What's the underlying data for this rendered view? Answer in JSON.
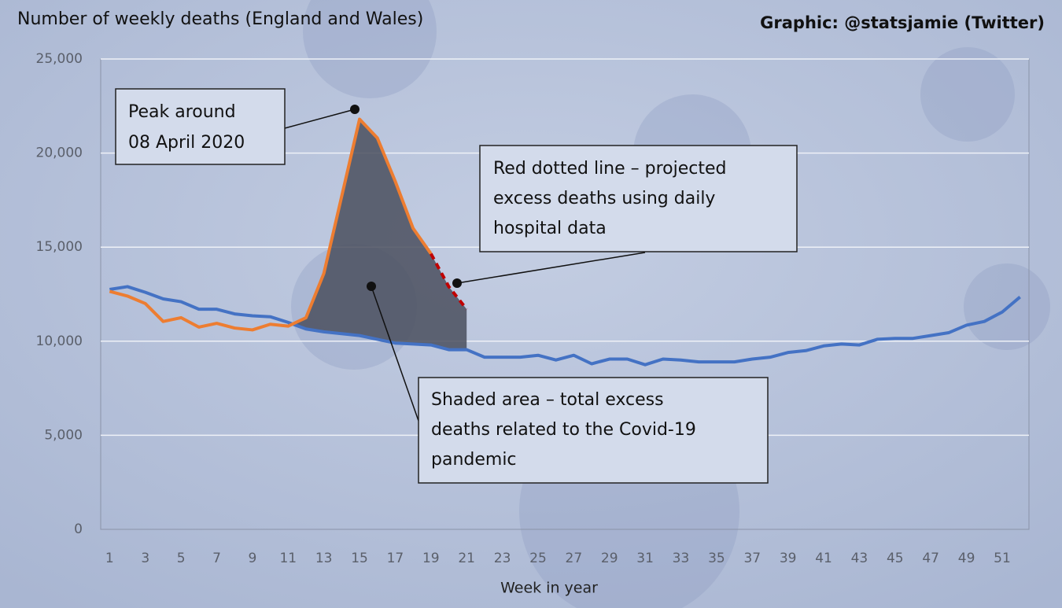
{
  "chart_data": {
    "type": "line",
    "title": "Number of weekly deaths (England and Wales)",
    "credit": "Graphic: @statsjamie (Twitter)",
    "x_label": "Week in year",
    "x": [
      1,
      2,
      3,
      4,
      5,
      6,
      7,
      8,
      9,
      10,
      11,
      12,
      13,
      14,
      15,
      16,
      17,
      18,
      19,
      20,
      21,
      22,
      23,
      24,
      25,
      26,
      27,
      28,
      29,
      30,
      31,
      32,
      33,
      34,
      35,
      36,
      37,
      38,
      39,
      40,
      41,
      42,
      43,
      44,
      45,
      46,
      47,
      48,
      49,
      50,
      51,
      52
    ],
    "xlim": [
      0.5,
      52.5
    ],
    "xticks": [
      1,
      3,
      5,
      7,
      9,
      11,
      13,
      15,
      17,
      19,
      21,
      23,
      25,
      27,
      29,
      31,
      33,
      35,
      37,
      39,
      41,
      43,
      45,
      47,
      49,
      51
    ],
    "ylim": [
      0,
      25000
    ],
    "yticks": [
      0,
      {
        "value": 5000,
        "label": "5,000"
      },
      {
        "value": 10000,
        "label": "10,000"
      },
      {
        "value": 15000,
        "label": "15,000"
      },
      {
        "value": 20000,
        "label": "20,000"
      },
      {
        "value": 25000,
        "label": "25,000"
      }
    ],
    "grid": true,
    "series": [
      {
        "color": "#4472c4",
        "values": [
          12750,
          12900,
          12600,
          12250,
          12100,
          11700,
          11700,
          11450,
          11350,
          11300,
          11000,
          10650,
          10500,
          10400,
          10300,
          10100,
          9900,
          9850,
          9800,
          9550,
          9550,
          9150,
          9150,
          9150,
          9250,
          9000,
          9250,
          8800,
          9050,
          9050,
          8750,
          9050,
          9000,
          8900,
          8900,
          8900,
          9050,
          9150,
          9400,
          9500,
          9750,
          9850,
          9800,
          10100,
          10150,
          10150,
          10300,
          10450,
          10850,
          11050,
          11550,
          12350
        ]
      },
      {
        "color": "#ed7d31",
        "values": [
          12650,
          12400,
          12000,
          11050,
          11250,
          10750,
          10950,
          10700,
          10600,
          10900,
          10800,
          11250,
          13600,
          17700,
          21800,
          20800,
          18500,
          16000,
          14650,
          null,
          null,
          null,
          null,
          null,
          null,
          null,
          null,
          null,
          null,
          null,
          null,
          null,
          null,
          null,
          null,
          null,
          null,
          null,
          null,
          null,
          null,
          null,
          null,
          null,
          null,
          null,
          null,
          null,
          null,
          null,
          null,
          null
        ]
      },
      {
        "color": "#c00000",
        "dashed": true,
        "values": [
          null,
          null,
          null,
          null,
          null,
          null,
          null,
          null,
          null,
          null,
          null,
          null,
          null,
          null,
          null,
          null,
          null,
          null,
          14650,
          12900,
          11700,
          null,
          null,
          null,
          null,
          null,
          null,
          null,
          null,
          null,
          null,
          null,
          null,
          null,
          null,
          null,
          null,
          null,
          null,
          null,
          null,
          null,
          null,
          null,
          null,
          null,
          null,
          null,
          null,
          null,
          null,
          null
        ]
      }
    ],
    "area_color": "#4a4f5e",
    "annotations": [
      {
        "lines": [
          "Peak around",
          "08 April 2020"
        ]
      },
      {
        "lines": [
          "Red dotted  line – projected",
          "excess deaths using daily",
          "hospital data"
        ]
      },
      {
        "lines": [
          "Shaded  area – total excess",
          "deaths related to the Covid-19",
          "pandemic"
        ]
      }
    ]
  }
}
